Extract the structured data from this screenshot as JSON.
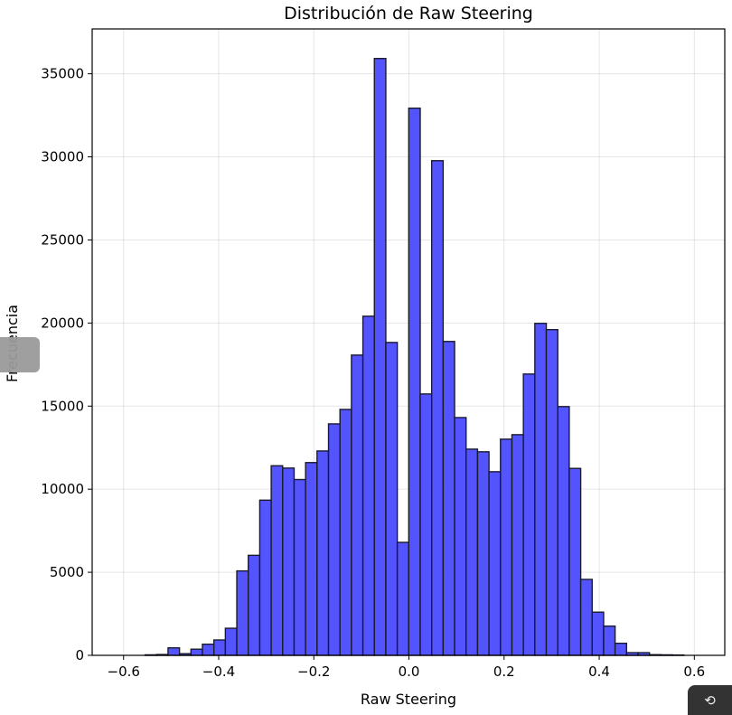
{
  "chart_data": {
    "type": "bar",
    "subtype": "histogram",
    "title": "Distribución de Raw Steering",
    "xlabel": "Raw Steering",
    "ylabel": "Frecuencia",
    "xlim": [
      -0.666,
      0.664
    ],
    "ylim": [
      0,
      37700
    ],
    "xticks": [
      -0.6,
      -0.4,
      -0.2,
      0.0,
      0.2,
      0.4,
      0.6
    ],
    "xtick_labels": [
      "−0.6",
      "−0.4",
      "−0.2",
      "0.0",
      "0.2",
      "0.4",
      "0.6"
    ],
    "yticks": [
      0,
      5000,
      10000,
      15000,
      20000,
      25000,
      30000,
      35000
    ],
    "ytick_labels": [
      "0",
      "5000",
      "10000",
      "15000",
      "20000",
      "25000",
      "30000",
      "35000"
    ],
    "grid": true,
    "bin_start": -0.627,
    "bin_width": 0.0241,
    "values": [
      0,
      0,
      0,
      30,
      50,
      450,
      100,
      370,
      670,
      925,
      1630,
      5080,
      6020,
      9340,
      11410,
      11270,
      10580,
      11600,
      12300,
      13930,
      14800,
      18070,
      20410,
      35920,
      18830,
      6800,
      32930,
      15730,
      29770,
      18890,
      14310,
      12410,
      12250,
      11050,
      13010,
      13280,
      16930,
      19980,
      19600,
      14970,
      11250,
      4570,
      2600,
      1760,
      725,
      160,
      160,
      40,
      30,
      20
    ],
    "bar_color": "#4b4bff",
    "edge_color": "#1a1a2e"
  },
  "controls": {
    "reset_icon": "rotate-ccw-icon",
    "reset_glyph": "⟲"
  }
}
